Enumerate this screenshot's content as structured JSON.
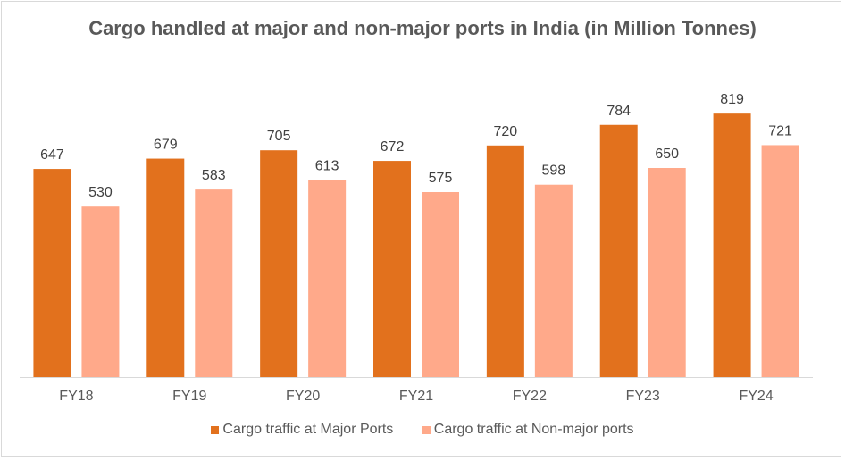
{
  "chart_data": {
    "type": "bar",
    "title": "Cargo handled at major and non-major ports in India (in Million Tonnes)",
    "categories": [
      "FY18",
      "FY19",
      "FY20",
      "FY21",
      "FY22",
      "FY23",
      "FY24"
    ],
    "series": [
      {
        "name": "Cargo traffic at Major Ports",
        "values": [
          647,
          679,
          705,
          672,
          720,
          784,
          819
        ],
        "color": "#E2711D"
      },
      {
        "name": "Cargo traffic at Non-major ports",
        "values": [
          530,
          583,
          613,
          575,
          598,
          650,
          721
        ],
        "color": "#FFA98A"
      }
    ],
    "xlabel": "",
    "ylabel": "",
    "ylim": [
      0,
      900
    ],
    "grid": false,
    "data_labels": true,
    "legend_position": "bottom"
  }
}
